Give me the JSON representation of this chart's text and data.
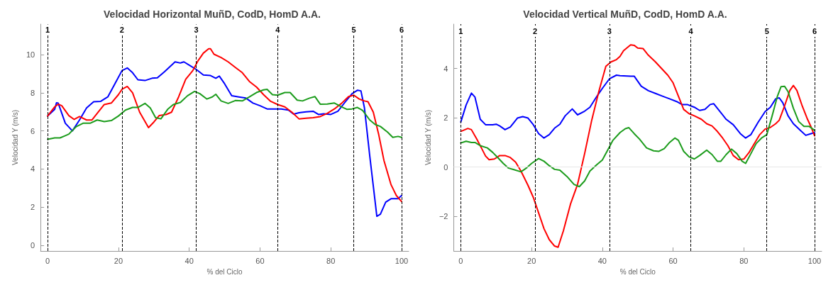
{
  "chart_data": [
    {
      "type": "line",
      "title": "Velocidad Horizontal MuñD, CodD, HomD A.A.",
      "xlabel": "% del Ciclo",
      "ylabel": "Velocidad Y (m/s)",
      "xlim": [
        -2,
        102
      ],
      "ylim": [
        -0.3,
        11.6
      ],
      "xticks": [
        0,
        20,
        40,
        60,
        80,
        100
      ],
      "yticks": [
        0,
        2,
        4,
        6,
        8,
        10
      ],
      "grid": false,
      "marker": "none",
      "line_style": "solid",
      "annotations": [
        {
          "text": "1",
          "x": 0,
          "y": 11.3
        },
        {
          "text": "2",
          "x": 21,
          "y": 11.3
        },
        {
          "text": "3",
          "x": 42,
          "y": 11.3
        },
        {
          "text": "4",
          "x": 65,
          "y": 11.3
        },
        {
          "text": "5",
          "x": 86.5,
          "y": 11.3
        },
        {
          "text": "6",
          "x": 100,
          "y": 11.3
        }
      ],
      "ref_lines": [
        {
          "axis": "x",
          "value": 0,
          "line_style": "dashed",
          "color": "#000000"
        },
        {
          "axis": "x",
          "value": 21,
          "line_style": "dashed",
          "color": "#000000"
        },
        {
          "axis": "x",
          "value": 42,
          "line_style": "dashed",
          "color": "#000000"
        },
        {
          "axis": "x",
          "value": 65,
          "line_style": "dashed",
          "color": "#000000"
        },
        {
          "axis": "x",
          "value": 86.5,
          "line_style": "dashed",
          "color": "#000000"
        },
        {
          "axis": "x",
          "value": 100,
          "line_style": "dashed",
          "color": "#000000"
        }
      ],
      "series": [
        {
          "color": "#0000ff",
          "x": [
            0,
            2,
            2.5,
            3,
            5,
            7,
            9,
            11,
            13,
            15,
            17,
            19,
            21,
            22.5,
            24,
            25.5,
            27.5,
            29.5,
            31,
            33,
            36,
            37.5,
            38.5,
            40,
            42,
            44,
            46,
            47.5,
            48.5,
            50,
            52,
            54,
            56,
            58,
            60,
            62,
            64,
            66,
            68,
            69.5,
            71,
            73,
            75,
            76.5,
            78,
            80,
            82,
            84,
            86,
            87.5,
            88.5,
            89.5,
            91,
            93,
            94,
            95.5,
            97,
            99,
            100
          ],
          "values": [
            6.78,
            7.13,
            7.47,
            7.45,
            6.4,
            6.0,
            6.57,
            7.2,
            7.53,
            7.55,
            7.78,
            8.47,
            9.16,
            9.3,
            9.05,
            8.68,
            8.64,
            8.76,
            8.78,
            9.1,
            9.62,
            9.56,
            9.62,
            9.45,
            9.22,
            8.93,
            8.9,
            8.76,
            8.87,
            8.47,
            7.84,
            7.78,
            7.72,
            7.46,
            7.32,
            7.15,
            7.15,
            7.15,
            7.09,
            6.88,
            6.95,
            7.0,
            7.03,
            6.86,
            6.9,
            6.86,
            7.03,
            7.5,
            7.95,
            8.13,
            8.1,
            7.2,
            4.68,
            1.52,
            1.63,
            2.26,
            2.44,
            2.44,
            2.61
          ]
        },
        {
          "color": "#ff0000",
          "x": [
            0,
            2,
            3,
            4,
            6,
            7.5,
            9,
            11,
            12.5,
            14,
            16,
            18,
            20,
            21,
            22.5,
            24,
            26,
            28.5,
            30,
            31.5,
            33.5,
            35,
            37,
            39,
            41,
            42.5,
            44,
            45.5,
            46,
            47,
            49,
            51,
            53,
            55,
            57,
            59,
            61,
            63,
            65,
            67,
            69,
            71,
            73,
            75,
            77,
            79,
            81,
            83,
            85,
            86.5,
            88,
            89.5,
            90.5,
            92,
            93.5,
            95,
            97,
            98.5,
            100
          ],
          "values": [
            6.78,
            7.26,
            7.4,
            7.32,
            6.8,
            6.6,
            6.75,
            6.57,
            6.57,
            6.92,
            7.38,
            7.46,
            7.9,
            8.18,
            8.33,
            8.0,
            6.98,
            6.17,
            6.46,
            6.8,
            6.86,
            6.98,
            7.78,
            8.7,
            9.16,
            9.68,
            10.08,
            10.31,
            10.31,
            10.02,
            9.85,
            9.62,
            9.33,
            9.05,
            8.59,
            8.3,
            7.9,
            7.55,
            7.38,
            7.26,
            6.98,
            6.63,
            6.66,
            6.69,
            6.75,
            6.92,
            7.15,
            7.44,
            7.8,
            7.87,
            7.67,
            7.57,
            7.53,
            6.98,
            5.83,
            4.45,
            3.18,
            2.61,
            2.29
          ]
        },
        {
          "color": "#1c9c1c",
          "x": [
            0,
            2,
            3.5,
            5,
            6,
            8,
            10,
            12,
            14,
            16,
            18,
            20,
            22,
            24,
            25.5,
            27.5,
            29,
            30.5,
            32,
            34,
            35.5,
            37.5,
            39.5,
            41.5,
            43,
            45,
            46.5,
            47.5,
            49,
            51,
            53,
            55,
            57,
            59,
            61,
            62,
            63.5,
            65,
            67,
            68.5,
            70.5,
            72,
            74,
            75.5,
            77,
            79,
            81,
            83,
            84.5,
            86,
            87.5,
            89,
            91,
            92.5,
            94,
            96,
            97.5,
            99,
            100
          ],
          "values": [
            5.56,
            5.63,
            5.63,
            5.75,
            5.83,
            6.21,
            6.4,
            6.4,
            6.57,
            6.49,
            6.54,
            6.78,
            7.09,
            7.23,
            7.23,
            7.44,
            7.2,
            6.69,
            6.63,
            7.15,
            7.38,
            7.49,
            7.84,
            8.07,
            7.95,
            7.67,
            7.78,
            7.92,
            7.57,
            7.44,
            7.59,
            7.57,
            7.78,
            8.01,
            8.15,
            8.18,
            7.9,
            7.87,
            8.01,
            8.01,
            7.61,
            7.57,
            7.72,
            7.8,
            7.4,
            7.41,
            7.46,
            7.26,
            7.13,
            7.15,
            7.23,
            7.07,
            6.57,
            6.34,
            6.23,
            5.94,
            5.66,
            5.71,
            5.66
          ]
        }
      ]
    },
    {
      "type": "line",
      "title": "Velocidad Vertical MuñD, CodD, HomD A.A.",
      "xlabel": "% del Ciclo",
      "ylabel": "Velocidad Y (m/s)",
      "xlim": [
        -2,
        102
      ],
      "ylim": [
        -3.4,
        5.8
      ],
      "xticks": [
        0,
        20,
        40,
        60,
        80,
        100
      ],
      "yticks": [
        -2,
        0,
        2,
        4
      ],
      "grid": false,
      "marker": "none",
      "line_style": "solid",
      "annotations": [
        {
          "text": "1",
          "x": 0,
          "y": 5.5
        },
        {
          "text": "2",
          "x": 21,
          "y": 5.5
        },
        {
          "text": "3",
          "x": 42,
          "y": 5.5
        },
        {
          "text": "4",
          "x": 65,
          "y": 5.5
        },
        {
          "text": "5",
          "x": 86.5,
          "y": 5.5
        },
        {
          "text": "6",
          "x": 100,
          "y": 5.5
        }
      ],
      "ref_lines": [
        {
          "axis": "y",
          "value": 0,
          "line_style": "solid",
          "color": "#e6e6e6"
        },
        {
          "axis": "x",
          "value": 0,
          "line_style": "dashed",
          "color": "#000000"
        },
        {
          "axis": "x",
          "value": 21,
          "line_style": "dashed",
          "color": "#000000"
        },
        {
          "axis": "x",
          "value": 42,
          "line_style": "dashed",
          "color": "#000000"
        },
        {
          "axis": "x",
          "value": 65,
          "line_style": "dashed",
          "color": "#000000"
        },
        {
          "axis": "x",
          "value": 86.5,
          "line_style": "dashed",
          "color": "#000000"
        },
        {
          "axis": "x",
          "value": 100,
          "line_style": "dashed",
          "color": "#000000"
        }
      ],
      "series": [
        {
          "color": "#0000ff",
          "x": [
            0,
            1.5,
            3,
            4,
            5.5,
            7,
            9,
            10,
            11,
            12.5,
            14,
            16,
            17.5,
            19,
            20.5,
            22,
            23.5,
            25,
            26.5,
            28,
            29.5,
            31.5,
            33,
            35,
            36.5,
            38.5,
            40,
            42,
            44,
            45,
            48,
            49,
            51,
            53,
            55,
            57,
            59,
            61,
            62.5,
            64,
            66,
            67.5,
            69,
            70.5,
            71.5,
            73.5,
            75,
            77,
            79,
            80.5,
            82,
            84,
            86,
            87.5,
            89,
            90,
            91,
            92.5,
            94,
            96,
            97.5,
            99,
            100
          ],
          "values": [
            1.83,
            2.52,
            3.0,
            2.84,
            1.94,
            1.72,
            1.72,
            1.74,
            1.67,
            1.52,
            1.63,
            1.99,
            2.05,
            1.99,
            1.72,
            1.36,
            1.18,
            1.32,
            1.58,
            1.74,
            2.08,
            2.36,
            2.12,
            2.27,
            2.43,
            2.88,
            3.19,
            3.58,
            3.73,
            3.71,
            3.69,
            3.69,
            3.28,
            3.1,
            2.99,
            2.88,
            2.77,
            2.66,
            2.54,
            2.54,
            2.43,
            2.3,
            2.34,
            2.54,
            2.57,
            2.21,
            1.94,
            1.72,
            1.36,
            1.18,
            1.32,
            1.81,
            2.25,
            2.43,
            2.77,
            2.81,
            2.61,
            2.08,
            1.76,
            1.49,
            1.29,
            1.36,
            1.4
          ]
        },
        {
          "color": "#ff0000",
          "x": [
            0,
            2,
            3,
            4.5,
            6,
            7,
            8,
            9.5,
            11,
            12.5,
            14,
            15.5,
            17,
            19,
            20.5,
            22,
            23.5,
            25,
            26.5,
            27.5,
            29,
            31,
            33,
            35,
            37,
            39,
            41,
            42.5,
            44,
            45,
            46,
            48,
            49,
            50,
            51.5,
            53,
            55,
            57,
            58.5,
            60,
            61.5,
            63,
            64.5,
            66,
            68,
            69.5,
            71,
            72.5,
            74,
            75.5,
            77,
            78.5,
            80,
            81.5,
            83,
            84.5,
            86,
            87.5,
            89,
            90,
            91.5,
            93,
            94,
            95,
            96.5,
            98,
            99,
            100
          ],
          "values": [
            1.45,
            1.57,
            1.52,
            1.14,
            0.73,
            0.45,
            0.3,
            0.33,
            0.47,
            0.47,
            0.39,
            0.2,
            -0.16,
            -0.74,
            -1.23,
            -1.86,
            -2.49,
            -2.94,
            -3.2,
            -3.25,
            -2.58,
            -1.5,
            -0.7,
            0.55,
            1.9,
            3.06,
            4.09,
            4.27,
            4.36,
            4.49,
            4.72,
            4.96,
            4.94,
            4.83,
            4.81,
            4.54,
            4.27,
            3.96,
            3.73,
            3.42,
            2.88,
            2.34,
            2.17,
            2.08,
            1.94,
            1.76,
            1.67,
            1.45,
            1.18,
            0.87,
            0.47,
            0.3,
            0.33,
            0.6,
            0.96,
            1.32,
            1.54,
            1.61,
            1.76,
            1.9,
            2.48,
            3.11,
            3.31,
            3.11,
            2.48,
            1.94,
            1.63,
            1.27
          ]
        },
        {
          "color": "#1c9c1c",
          "x": [
            0,
            1.5,
            3,
            4,
            5.5,
            7.5,
            9,
            10.5,
            12,
            13.5,
            15,
            17,
            18.5,
            20,
            22,
            23.5,
            25,
            26.5,
            28,
            30,
            32,
            33.5,
            35,
            36.5,
            38.5,
            40,
            42,
            43,
            45,
            46.5,
            47.5,
            49,
            50.5,
            52.5,
            54.5,
            56,
            57.5,
            59,
            60.5,
            61.5,
            63,
            64.5,
            66,
            67.5,
            69.5,
            71,
            72.5,
            73.5,
            75,
            76.5,
            78,
            79.5,
            80.5,
            82,
            83.5,
            85,
            86.5,
            88,
            89.5,
            90.5,
            91.5,
            92.5,
            94,
            95.5,
            97,
            98.5,
            100
          ],
          "values": [
            0.98,
            1.05,
            1.0,
            1.0,
            0.87,
            0.78,
            0.6,
            0.38,
            0.15,
            -0.04,
            -0.1,
            -0.19,
            -0.04,
            0.15,
            0.35,
            0.24,
            0.06,
            -0.09,
            -0.12,
            -0.38,
            -0.7,
            -0.79,
            -0.56,
            -0.16,
            0.11,
            0.29,
            0.82,
            1.09,
            1.4,
            1.56,
            1.6,
            1.36,
            1.14,
            0.78,
            0.66,
            0.64,
            0.75,
            1.0,
            1.18,
            1.09,
            0.64,
            0.42,
            0.33,
            0.47,
            0.69,
            0.51,
            0.24,
            0.24,
            0.51,
            0.73,
            0.55,
            0.24,
            0.15,
            0.55,
            0.96,
            1.18,
            1.32,
            2.08,
            2.88,
            3.26,
            3.28,
            3.06,
            2.39,
            1.85,
            1.65,
            1.65,
            1.49
          ]
        }
      ]
    }
  ]
}
